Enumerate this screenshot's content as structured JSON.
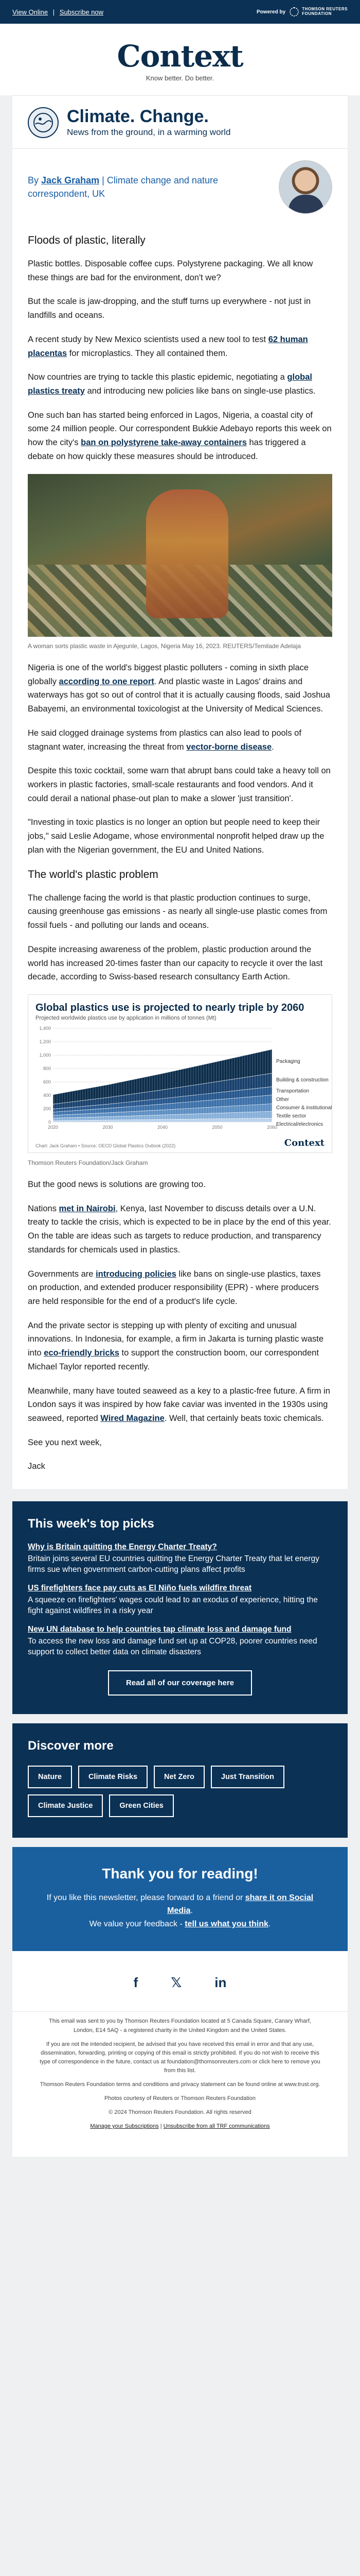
{
  "topbar": {
    "view_online": "View Online",
    "separator": "|",
    "subscribe": "Subscribe now",
    "powered_by": "Powered by",
    "tr_line1": "THOMSON REUTERS",
    "tr_line2": "FOUNDATION"
  },
  "masthead": {
    "brand": "Context",
    "tagline": "Know better. Do better."
  },
  "newsletter": {
    "title": "Climate. Change.",
    "subtitle": "News from the ground, in a warming world"
  },
  "byline": {
    "prefix": "By",
    "author": "Jack Graham",
    "sep": "|",
    "role": "Climate change and nature correspondent, UK"
  },
  "article": {
    "h1": "Floods of plastic, literally",
    "p1": "Plastic bottles. Disposable coffee cups. Polystyrene packaging. We all know these things are bad for the environment, don't we?",
    "p2": "But the scale is jaw-dropping, and the stuff turns up everywhere - not just in landfills and oceans.",
    "p3_a": "A recent study by New Mexico scientists used a new tool to test ",
    "p3_link": "62 human placentas",
    "p3_b": " for microplastics. They all contained them.",
    "p4_a": "Now countries are trying to tackle this plastic epidemic, negotiating a ",
    "p4_link": "global plastics treaty",
    "p4_b": " and introducing new policies like bans on single-use plastics.",
    "p5_a": "One such ban has started being enforced in Lagos, Nigeria, a coastal city of some 24 million people. Our correspondent Bukkie Adebayo reports this week on how the city's ",
    "p5_link": "ban on polystyrene take-away containers",
    "p5_b": " has triggered a debate on how quickly these measures should be introduced.",
    "caption": "A woman sorts plastic waste in Ajegunle, Lagos, Nigeria May 16, 2023. REUTERS/Temilade Adelaja",
    "p6_a": "Nigeria is one of the world's biggest plastic polluters - coming in sixth place globally ",
    "p6_link": "according to one report",
    "p6_b": ". And plastic waste in Lagos' drains and waterways has got so out of control that it is actually causing floods, said Joshua Babayemi, an environmental toxicologist at the University of Medical Sciences.",
    "p7_a": "He said clogged drainage systems from plastics can also lead to pools of stagnant water, increasing the threat from ",
    "p7_link": "vector-borne disease",
    "p7_b": ".",
    "p8": "Despite this toxic cocktail, some warn that abrupt bans could take a heavy toll on workers in plastic factories, small-scale restaurants and food vendors. And it could derail a national phase-out plan to make a slower 'just transition'.",
    "p9": "\"Investing in toxic plastics is no longer an option but people need to keep their jobs,\" said Leslie Adogame, whose environmental nonprofit helped draw up the plan with the Nigerian government, the EU and United Nations.",
    "h2": "The world's plastic problem",
    "p10": "The challenge facing the world is that plastic production continues to surge, causing greenhouse gas emissions - as nearly all single-use plastic comes from fossil fuels - and polluting our lands and oceans.",
    "p11": "Despite increasing awareness of the problem, plastic production around the world has increased 20-times faster than our capacity to recycle it over the last decade, according to Swiss-based research consultancy Earth Action.",
    "chart_credit": "Thomson Reuters Foundation/Jack Graham",
    "p12": "But the good news is solutions are growing too.",
    "p13_a": "Nations ",
    "p13_link": "met in Nairobi",
    "p13_b": ", Kenya, last November to discuss details over a U.N. treaty to tackle the crisis, which is expected to be in place by the end of this year. On the table are ideas such as targets to reduce production, and transparency standards for chemicals used in plastics.",
    "p14_a": "Governments are ",
    "p14_link": "introducing policies",
    "p14_b": " like bans on single-use plastics, taxes on production, and extended producer responsibility (EPR) - where producers are held responsible for the end of a product's life cycle.",
    "p15_a": "And the private sector is stepping up with plenty of exciting and unusual innovations. In Indonesia, for example, a firm in Jakarta is turning plastic waste into ",
    "p15_link": "eco-friendly bricks",
    "p15_b": " to support the construction boom, our correspondent Michael Taylor reported recently.",
    "p16_a": "Meanwhile, many have touted seaweed as a key to a plastic-free future. A firm in London says it was inspired by how fake caviar was invented in the 1930s using seaweed, reported ",
    "p16_link": "Wired Magazine",
    "p16_b": ". Well, that certainly beats toxic chemicals.",
    "signoff1": "See you next week,",
    "signoff2": "Jack"
  },
  "chart_data": {
    "type": "area",
    "title": "Global plastics use is projected to nearly triple by 2060",
    "subtitle": "Projected worldwide plastics use by application in millions of tonnes (Mt)",
    "ylabel": "Mt",
    "ylim": [
      0,
      1400
    ],
    "yticks": [
      0,
      200,
      400,
      600,
      800,
      1000,
      1200,
      1400
    ],
    "x": [
      2020,
      2030,
      2040,
      2050,
      2060
    ],
    "series": [
      {
        "name": "Packaging",
        "values": [
          142,
          190,
          244,
          300,
          357
        ]
      },
      {
        "name": "Building & construction",
        "values": [
          72,
          100,
          130,
          165,
          201
        ]
      },
      {
        "name": "Transportation",
        "values": [
          46,
          63,
          83,
          104,
          125
        ]
      },
      {
        "name": "Other",
        "values": [
          48,
          66,
          87,
          108,
          130
        ]
      },
      {
        "name": "Consumer & institutional",
        "values": [
          43,
          58,
          75,
          94,
          113
        ]
      },
      {
        "name": "Textile sector",
        "values": [
          37,
          51,
          67,
          84,
          101
        ]
      },
      {
        "name": "Electrical/electronics",
        "values": [
          22,
          30,
          40,
          50,
          60
        ]
      }
    ],
    "source": "Chart: Jack Graham • Source: OECD Global Plastics Outlook (2022)",
    "logo": "Context"
  },
  "picks": {
    "heading": "This week's top picks",
    "items": [
      {
        "title": "Why is Britain quitting the Energy Charter Treaty?",
        "desc": "Britain joins several EU countries quitting the Energy Charter Treaty that let energy firms sue when government carbon-cutting plans affect profits"
      },
      {
        "title": "US firefighters face pay cuts as El Niño fuels wildfire threat",
        "desc": "A squeeze on firefighters' wages could lead to an exodus of experience, hitting the fight against wildfires in a risky year"
      },
      {
        "title": "New UN database to help countries tap climate loss and damage fund",
        "desc": "To access the new loss and damage fund set up at COP28, poorer countries need support to collect better data on climate disasters"
      }
    ],
    "button": "Read all of our coverage here"
  },
  "discover": {
    "heading": "Discover more",
    "chips": [
      "Nature",
      "Climate Risks",
      "Net Zero",
      "Just Transition",
      "Climate Justice",
      "Green Cities"
    ]
  },
  "thanks": {
    "heading": "Thank you for reading!",
    "l1_a": "If you like this newsletter, please forward to a friend or ",
    "l1_link": "share it on Social Media",
    "l1_b": ".",
    "l2_a": "We value your feedback - ",
    "l2_link": "tell us what you think",
    "l2_b": "."
  },
  "social": {
    "facebook": "f",
    "twitter": "𝕏",
    "linkedin": "in"
  },
  "footer": {
    "f1": "This email was sent to you by Thomson Reuters Foundation located at 5 Canada Square, Canary Wharf, London, E14 5AQ - a registered charity in the United Kingdom and the United States.",
    "f2": "If you are not the intended recipient, be advised that you have received this email in error and that any use, dissemination, forwarding, printing or copying of this email is strictly prohibited. If you do not wish to receive this type of correspondence in the future, contact us at foundation@thomsonreuters.com or click here to remove you from this list.",
    "f3": "Thomson Reuters Foundation terms and conditions and privacy statement can be found online at www.trust.org.",
    "f4": "Photos courtesy of Reuters or Thomson Reuters Foundation",
    "f5": "© 2024 Thomson Reuters Foundation. All rights reserved",
    "manage": "Manage your Subscriptions",
    "sep": "|",
    "unsubscribe": "Unsubscribe from all TRF communications"
  }
}
